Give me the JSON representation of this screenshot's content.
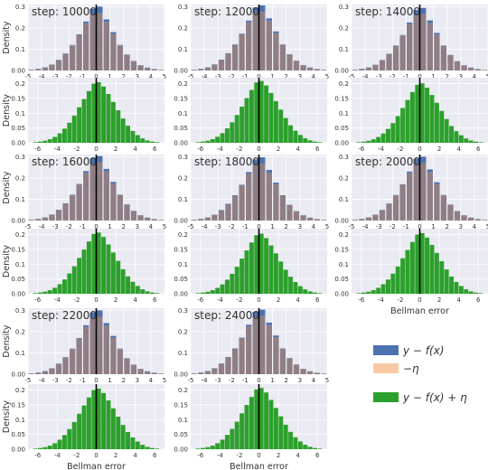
{
  "chart_data": {
    "type": "bar",
    "y_axis_label": "Density",
    "x_axis_label": "Bellman error",
    "legend": {
      "position": "bottom-right",
      "entries": [
        {
          "label": "y − f(x)",
          "color": "#4c72b0"
        },
        {
          "label": "−η",
          "color": "#f8c9a4"
        },
        {
          "label": "y − f(x) + η",
          "color": "#2ca02c"
        }
      ]
    },
    "grid": true,
    "background_color": "#eaeaf2",
    "top_panels": {
      "xlim": [
        -5,
        5
      ],
      "xticks": [
        -5,
        -4,
        -3,
        -2,
        -1,
        0,
        1,
        2,
        3,
        4,
        5
      ],
      "ylim": [
        0,
        0.31
      ],
      "yticks": [
        0.0,
        0.1,
        0.2,
        0.3
      ],
      "series_name_yfx": "y − f(x)",
      "series_name_eta": "−η",
      "bin_centers": [
        -4.75,
        -4.25,
        -3.75,
        -3.25,
        -2.75,
        -2.25,
        -1.75,
        -1.25,
        -0.75,
        -0.25,
        0.25,
        0.75,
        1.25,
        1.75,
        2.25,
        2.75,
        3.25,
        3.75,
        4.25,
        4.75
      ],
      "bin_width": 0.42,
      "yfx_shape": [
        0.004,
        0.008,
        0.015,
        0.028,
        0.05,
        0.08,
        0.12,
        0.17,
        0.23,
        0.29,
        0.3,
        0.24,
        0.18,
        0.12,
        0.075,
        0.045,
        0.025,
        0.014,
        0.007,
        0.003
      ],
      "eta_shape": [
        0.003,
        0.007,
        0.014,
        0.027,
        0.048,
        0.078,
        0.118,
        0.168,
        0.222,
        0.265,
        0.27,
        0.228,
        0.172,
        0.118,
        0.074,
        0.044,
        0.024,
        0.013,
        0.006,
        0.003
      ]
    },
    "bottom_panels": {
      "xlim": [
        -7,
        7
      ],
      "xticks": [
        -6,
        -4,
        -2,
        0,
        2,
        4,
        6
      ],
      "ylim": [
        0,
        0.22
      ],
      "yticks": [
        0.0,
        0.05,
        0.1,
        0.15,
        0.2
      ],
      "series_name": "y − f(x) + η",
      "bin_centers": [
        -6.25,
        -5.75,
        -5.25,
        -4.75,
        -4.25,
        -3.75,
        -3.25,
        -2.75,
        -2.25,
        -1.75,
        -1.25,
        -0.75,
        -0.25,
        0.25,
        0.75,
        1.25,
        1.75,
        2.25,
        2.75,
        3.25,
        3.75,
        4.25,
        4.75,
        5.25,
        5.75,
        6.25
      ],
      "bin_width": 0.46,
      "values": [
        0.002,
        0.004,
        0.007,
        0.012,
        0.02,
        0.032,
        0.048,
        0.068,
        0.092,
        0.12,
        0.148,
        0.175,
        0.2,
        0.205,
        0.19,
        0.165,
        0.138,
        0.11,
        0.082,
        0.058,
        0.04,
        0.026,
        0.015,
        0.008,
        0.004,
        0.002
      ]
    },
    "panels": [
      {
        "step_label": "step: 10000",
        "scale": 1.0,
        "bottom_y_label": false,
        "bottom_x_label": false
      },
      {
        "step_label": "step: 12000",
        "scale": 1.02,
        "bottom_y_label": false,
        "bottom_x_label": false
      },
      {
        "step_label": "step: 14000",
        "scale": 0.98,
        "bottom_y_label": false,
        "bottom_x_label": false
      },
      {
        "step_label": "step: 16000",
        "scale": 1.01,
        "bottom_y_label": false,
        "bottom_x_label": false
      },
      {
        "step_label": "step: 18000",
        "scale": 0.99,
        "bottom_y_label": false,
        "bottom_x_label": false
      },
      {
        "step_label": "step: 20000",
        "scale": 1.0,
        "bottom_y_label": false,
        "bottom_x_label": true
      },
      {
        "step_label": "step: 22000",
        "scale": 1.0,
        "bottom_y_label": false,
        "bottom_x_label": true
      },
      {
        "step_label": "step: 24000",
        "scale": 1.01,
        "bottom_y_label": false,
        "bottom_x_label": true
      }
    ]
  }
}
